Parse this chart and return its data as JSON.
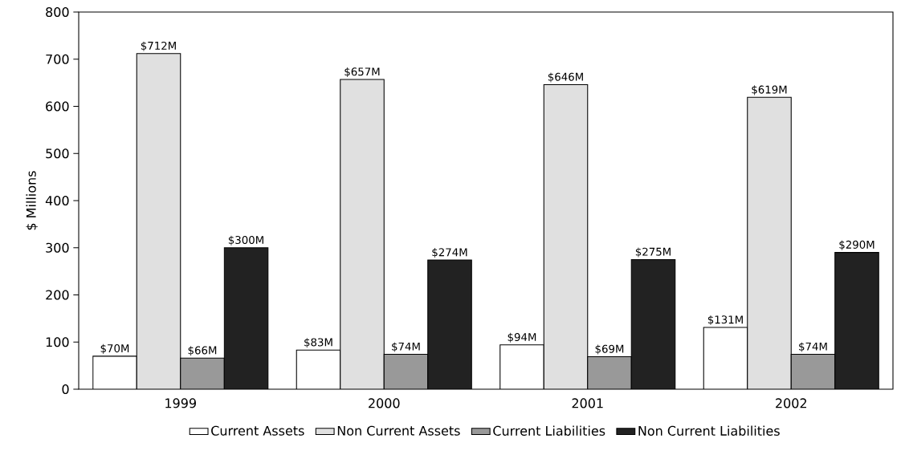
{
  "chart_data": {
    "type": "bar",
    "ylabel": "$ Millions",
    "categories": [
      "1999",
      "2000",
      "2001",
      "2002"
    ],
    "ylim": [
      0,
      800
    ],
    "yticks": [
      0,
      100,
      200,
      300,
      400,
      500,
      600,
      700,
      800
    ],
    "legend": "bottom",
    "series": [
      {
        "name": "Current Assets",
        "color": "#ffffff",
        "values": [
          70,
          83,
          94,
          131
        ],
        "value_labels": [
          "$70M",
          "$83M",
          "$94M",
          "$131M"
        ]
      },
      {
        "name": "Non Current Assets",
        "color": "#e0e0e0",
        "values": [
          712,
          657,
          646,
          619
        ],
        "value_labels": [
          "$712M",
          "$657M",
          "$646M",
          "$619M"
        ]
      },
      {
        "name": "Current Liabilities",
        "color": "#999999",
        "values": [
          66,
          74,
          69,
          74
        ],
        "value_labels": [
          "$66M",
          "$74M",
          "$69M",
          "$74M"
        ]
      },
      {
        "name": "Non Current Liabilities",
        "color": "#222222",
        "values": [
          300,
          274,
          275,
          290
        ],
        "value_labels": [
          "$300M",
          "$274M",
          "$275M",
          "$290M"
        ]
      }
    ]
  }
}
